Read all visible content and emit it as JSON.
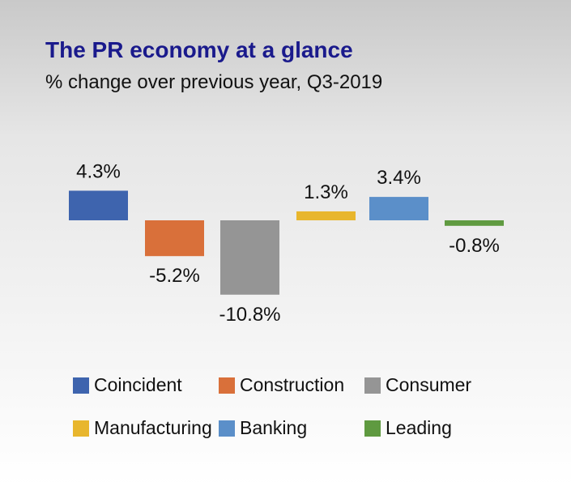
{
  "title": "The PR economy at a glance",
  "subtitle": "% change over previous year, Q3-2019",
  "chart_data": {
    "type": "bar",
    "title": "The PR economy at a glance",
    "subtitle": "% change over previous year, Q3-2019",
    "categories": [
      "Coincident",
      "Construction",
      "Consumer",
      "Manufacturing",
      "Banking",
      "Leading"
    ],
    "values": [
      4.3,
      -5.2,
      -10.8,
      1.3,
      3.4,
      -0.8
    ],
    "labels": [
      "4.3%",
      "-5.2%",
      "-10.8%",
      "1.3%",
      "3.4%",
      "-0.8%"
    ],
    "colors": [
      "#3e64ae",
      "#d9703a",
      "#959595",
      "#e8b62d",
      "#5b8fc9",
      "#5f9a40"
    ],
    "legend_position": "bottom",
    "grid": false
  }
}
